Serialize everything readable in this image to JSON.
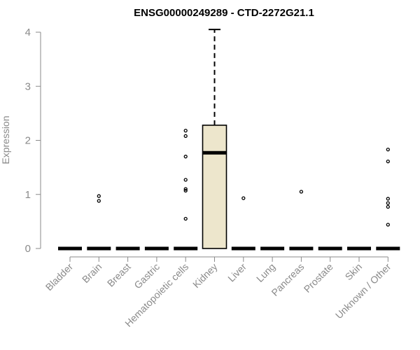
{
  "chart_data": {
    "type": "box",
    "title": "ENSG00000249289 - CTD-2272G21.1",
    "ylabel": "Expression",
    "xlabel": "",
    "ylim": [
      0,
      4
    ],
    "yticks": [
      "0",
      "1",
      "2",
      "3",
      "4"
    ],
    "categories": [
      "Bladder",
      "Brain",
      "Breast",
      "Gastric",
      "Hematopoietic cells",
      "Kidney",
      "Liver",
      "Lung",
      "Pancreas",
      "Prostate",
      "Skin",
      "Unknown / Other"
    ],
    "box_fill": "#ede6cc",
    "boxes": [
      {
        "category": "Bladder",
        "q1": 0,
        "median": 0,
        "q3": 0,
        "whisker_low": 0,
        "whisker_high": 0,
        "outliers": []
      },
      {
        "category": "Brain",
        "q1": 0,
        "median": 0,
        "q3": 0,
        "whisker_low": 0,
        "whisker_high": 0,
        "outliers": [
          0.97,
          0.88
        ]
      },
      {
        "category": "Breast",
        "q1": 0,
        "median": 0,
        "q3": 0,
        "whisker_low": 0,
        "whisker_high": 0,
        "outliers": []
      },
      {
        "category": "Gastric",
        "q1": 0,
        "median": 0,
        "q3": 0,
        "whisker_low": 0,
        "whisker_high": 0,
        "outliers": []
      },
      {
        "category": "Hematopoietic cells",
        "q1": 0,
        "median": 0,
        "q3": 0,
        "whisker_low": 0,
        "whisker_high": 0,
        "outliers": [
          2.18,
          2.08,
          1.7,
          1.27,
          1.1,
          1.07,
          0.55
        ]
      },
      {
        "category": "Kidney",
        "q1": 0,
        "median": 1.77,
        "q3": 2.28,
        "whisker_low": 0,
        "whisker_high": 4.05,
        "outliers": []
      },
      {
        "category": "Liver",
        "q1": 0,
        "median": 0,
        "q3": 0,
        "whisker_low": 0,
        "whisker_high": 0,
        "outliers": [
          0.93
        ]
      },
      {
        "category": "Lung",
        "q1": 0,
        "median": 0,
        "q3": 0,
        "whisker_low": 0,
        "whisker_high": 0,
        "outliers": []
      },
      {
        "category": "Pancreas",
        "q1": 0,
        "median": 0,
        "q3": 0,
        "whisker_low": 0,
        "whisker_high": 0,
        "outliers": [
          1.05
        ]
      },
      {
        "category": "Prostate",
        "q1": 0,
        "median": 0,
        "q3": 0,
        "whisker_low": 0,
        "whisker_high": 0,
        "outliers": []
      },
      {
        "category": "Skin",
        "q1": 0,
        "median": 0,
        "q3": 0,
        "whisker_low": 0,
        "whisker_high": 0,
        "outliers": []
      },
      {
        "category": "Unknown / Other",
        "q1": 0,
        "median": 0,
        "q3": 0,
        "whisker_low": 0,
        "whisker_high": 0,
        "outliers": [
          1.83,
          1.61,
          0.92,
          0.84,
          0.77,
          0.44
        ]
      }
    ],
    "grid": false,
    "legend": "none"
  }
}
